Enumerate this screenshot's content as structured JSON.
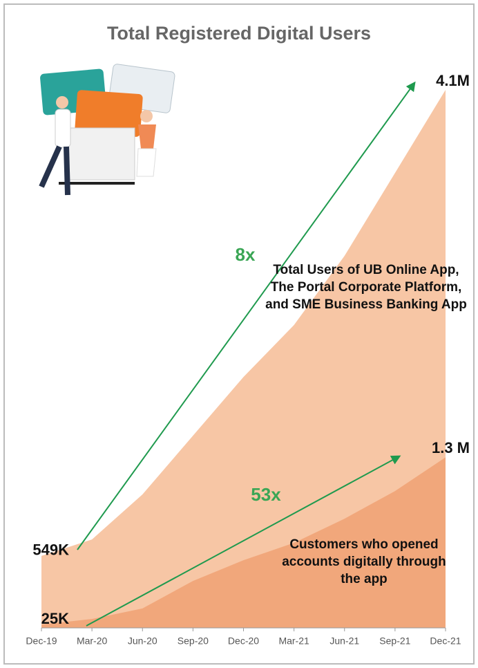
{
  "chart_data": {
    "type": "area",
    "title": "Total Registered Digital Users",
    "categories": [
      "Dec-19",
      "Mar-20",
      "Jun-20",
      "Sep-20",
      "Dec-20",
      "Mar-21",
      "Jun-21",
      "Sep-21",
      "Dec-21"
    ],
    "series": [
      {
        "name": "Total Users of UB Online App, The Portal Corporate Platform, and SME Business Banking App",
        "color": "#f7c6a5",
        "values": [
          549,
          674,
          1017,
          1465,
          1912,
          2308,
          2835,
          3467,
          4100
        ],
        "value_labels": [
          "549K",
          null,
          null,
          null,
          null,
          null,
          null,
          null,
          "4.1M"
        ]
      },
      {
        "name": "Customers who opened accounts digitally through the app",
        "color": "#f1a77b",
        "values": [
          25,
          68,
          148,
          358,
          516,
          648,
          832,
          1043,
          1300
        ],
        "value_labels": [
          "25K",
          null,
          null,
          null,
          null,
          null,
          null,
          null,
          "1.3 M"
        ]
      }
    ],
    "annotations": [
      "8x",
      "53x"
    ],
    "ylim": [
      0,
      4100
    ]
  }
}
